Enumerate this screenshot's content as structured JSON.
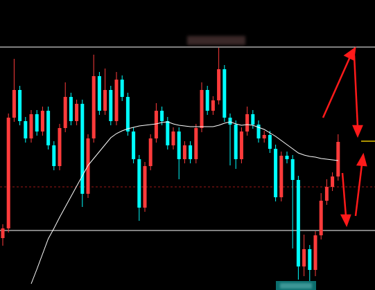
{
  "chart_data": {
    "type": "candlestick",
    "ylim": [
      0,
      419
    ],
    "up_color": "#ff3b3b",
    "down_color": "#00ffff",
    "open": [
      75,
      89,
      249,
      289,
      244,
      219,
      254,
      229,
      259,
      209,
      179,
      234,
      279,
      244,
      269,
      139,
      219,
      309,
      259,
      289,
      244,
      304,
      279,
      229,
      189,
      119,
      179,
      219,
      259,
      244,
      209,
      229,
      189,
      209,
      189,
      234,
      289,
      259,
      274,
      319,
      249,
      239,
      189,
      229,
      254,
      239,
      219,
      224,
      204,
      134,
      194,
      189,
      159,
      34,
      59,
      29,
      79,
      129,
      149,
      164
    ],
    "high": [
      95,
      255,
      334,
      295,
      250,
      260,
      260,
      265,
      265,
      215,
      240,
      300,
      285,
      275,
      275,
      225,
      340,
      315,
      320,
      295,
      315,
      310,
      285,
      235,
      195,
      185,
      225,
      270,
      265,
      250,
      235,
      235,
      215,
      215,
      240,
      300,
      295,
      280,
      350,
      325,
      255,
      245,
      235,
      265,
      260,
      245,
      230,
      230,
      210,
      200,
      200,
      195,
      165,
      80,
      65,
      85,
      140,
      160,
      170,
      225
    ],
    "low": [
      64,
      83,
      243,
      238,
      213,
      213,
      223,
      223,
      203,
      173,
      173,
      228,
      238,
      238,
      120,
      133,
      213,
      253,
      253,
      238,
      238,
      273,
      223,
      183,
      100,
      113,
      173,
      213,
      238,
      203,
      203,
      160,
      183,
      183,
      183,
      228,
      253,
      253,
      268,
      243,
      180,
      175,
      183,
      223,
      233,
      213,
      213,
      198,
      128,
      128,
      183,
      60,
      15,
      20,
      12,
      20,
      73,
      123,
      143,
      158
    ],
    "close": [
      89,
      249,
      289,
      244,
      219,
      254,
      229,
      259,
      209,
      179,
      234,
      279,
      244,
      269,
      139,
      219,
      309,
      259,
      289,
      244,
      304,
      279,
      229,
      189,
      119,
      179,
      219,
      259,
      244,
      209,
      229,
      189,
      209,
      189,
      234,
      289,
      259,
      274,
      319,
      249,
      239,
      189,
      229,
      254,
      239,
      219,
      224,
      204,
      134,
      194,
      189,
      159,
      34,
      59,
      29,
      79,
      129,
      149,
      164,
      214
    ],
    "ma": {
      "color": "#ffffff",
      "values": [
        null,
        null,
        null,
        null,
        null,
        9,
        30,
        52,
        74,
        89,
        105,
        120,
        135,
        150,
        165,
        180,
        190,
        200,
        210,
        220,
        226,
        230,
        233,
        235,
        237,
        238,
        239,
        240,
        242,
        243,
        240,
        238,
        237,
        236,
        236,
        236,
        236,
        236,
        238,
        241,
        243,
        240,
        238,
        239,
        238,
        235,
        232,
        227,
        222,
        216,
        210,
        204,
        198,
        195,
        193,
        192,
        190,
        189,
        188,
        187
      ]
    },
    "levels": [
      {
        "value": 351,
        "color": "#ffffff",
        "style": "solid"
      },
      {
        "value": 86,
        "color": "#ffffff",
        "style": "solid"
      },
      {
        "value": 149,
        "color": "#a01818",
        "style": "dashed"
      }
    ],
    "marker": {
      "value": 215,
      "color": "#e6c200"
    }
  }
}
